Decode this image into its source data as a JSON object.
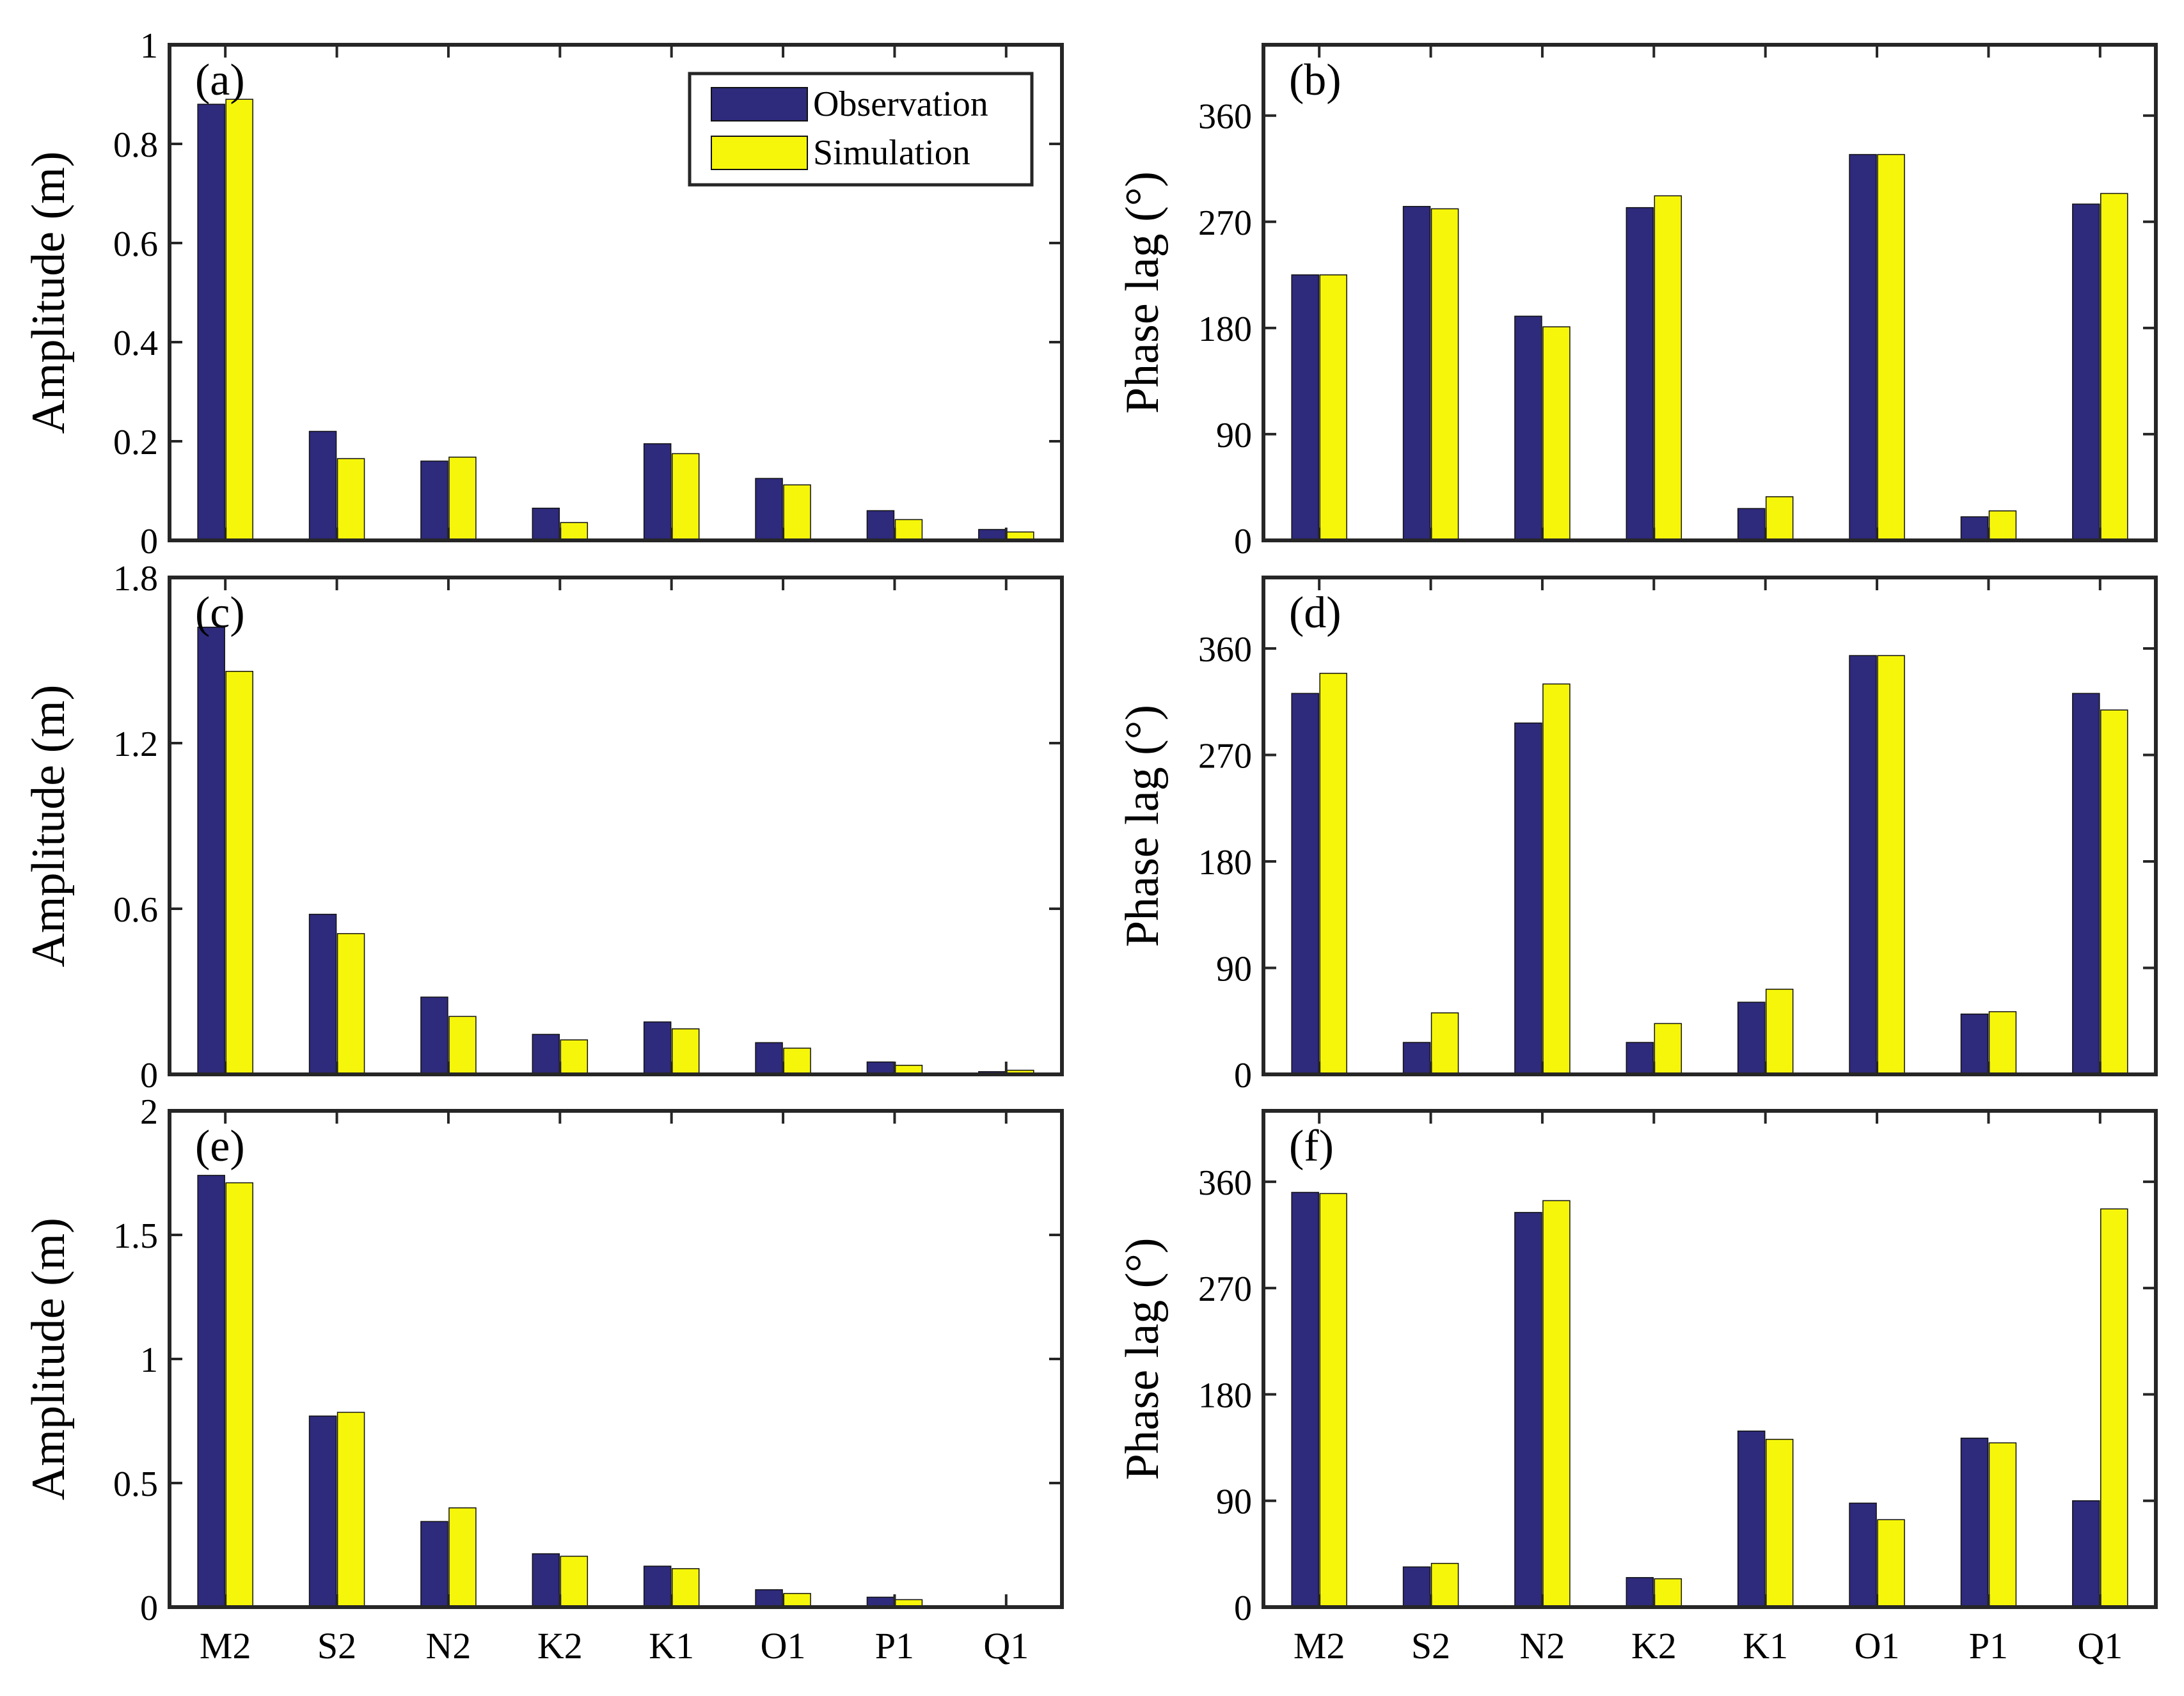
{
  "colors": {
    "observation": "#2e2a7c",
    "simulation": "#f6f60a",
    "axis": "#262626"
  },
  "legend": {
    "observation": "Observation",
    "simulation": "Simulation"
  },
  "chart_data": [
    {
      "id": "a",
      "panel_label": "(a)",
      "type": "bar",
      "ylabel": "Amplitude (m)",
      "xlabel": "",
      "categories": [
        "M2",
        "S2",
        "N2",
        "K2",
        "K1",
        "O1",
        "P1",
        "Q1"
      ],
      "ylim": [
        0,
        1
      ],
      "yticks": [
        0,
        0.2,
        0.4,
        0.6,
        0.8,
        1
      ],
      "ytick_labels": [
        "0",
        "0.2",
        "0.4",
        "0.6",
        "0.8",
        "1"
      ],
      "show_xticklabels": false,
      "show_legend": true,
      "legend_position": "top-right",
      "series": [
        {
          "name": "Observation",
          "values": [
            0.88,
            0.22,
            0.16,
            0.065,
            0.195,
            0.125,
            0.06,
            0.022
          ]
        },
        {
          "name": "Simulation",
          "values": [
            0.89,
            0.165,
            0.168,
            0.036,
            0.175,
            0.112,
            0.042,
            0.017
          ]
        }
      ]
    },
    {
      "id": "b",
      "panel_label": "(b)",
      "type": "bar",
      "ylabel": "Phase lag (°)",
      "xlabel": "",
      "categories": [
        "M2",
        "S2",
        "N2",
        "K2",
        "K1",
        "O1",
        "P1",
        "Q1"
      ],
      "ylim": [
        0,
        420
      ],
      "yticks": [
        0,
        90,
        180,
        270,
        360
      ],
      "ytick_labels": [
        "0",
        "90",
        "180",
        "270",
        "360"
      ],
      "show_xticklabels": false,
      "show_legend": false,
      "series": [
        {
          "name": "Observation",
          "values": [
            225,
            283,
            190,
            282,
            27,
            327,
            20,
            285
          ]
        },
        {
          "name": "Simulation",
          "values": [
            225,
            281,
            181,
            292,
            37,
            327,
            25,
            294
          ]
        }
      ]
    },
    {
      "id": "c",
      "panel_label": "(c)",
      "type": "bar",
      "ylabel": "Amplitude (m)",
      "xlabel": "",
      "categories": [
        "M2",
        "S2",
        "N2",
        "K2",
        "K1",
        "O1",
        "P1",
        "Q1"
      ],
      "ylim": [
        0,
        1.8
      ],
      "yticks": [
        0,
        0.6,
        1.2,
        1.8
      ],
      "ytick_labels": [
        "0",
        "0.6",
        "1.2",
        "1.8"
      ],
      "show_xticklabels": false,
      "show_legend": false,
      "series": [
        {
          "name": "Observation",
          "values": [
            1.62,
            0.58,
            0.28,
            0.145,
            0.19,
            0.115,
            0.045,
            0.01
          ]
        },
        {
          "name": "Simulation",
          "values": [
            1.46,
            0.51,
            0.21,
            0.125,
            0.165,
            0.095,
            0.033,
            0.015
          ]
        }
      ]
    },
    {
      "id": "d",
      "panel_label": "(d)",
      "type": "bar",
      "ylabel": "Phase lag (°)",
      "xlabel": "",
      "categories": [
        "M2",
        "S2",
        "N2",
        "K2",
        "K1",
        "O1",
        "P1",
        "Q1"
      ],
      "ylim": [
        0,
        420
      ],
      "yticks": [
        0,
        90,
        180,
        270,
        360
      ],
      "ytick_labels": [
        "0",
        "90",
        "180",
        "270",
        "360"
      ],
      "show_xticklabels": false,
      "show_legend": false,
      "series": [
        {
          "name": "Observation",
          "values": [
            322,
            27,
            297,
            27,
            61,
            354,
            51,
            322
          ]
        },
        {
          "name": "Simulation",
          "values": [
            339,
            52,
            330,
            43,
            72,
            354,
            53,
            308
          ]
        }
      ]
    },
    {
      "id": "e",
      "panel_label": "(e)",
      "type": "bar",
      "ylabel": "Amplitude (m)",
      "xlabel": "",
      "categories": [
        "M2",
        "S2",
        "N2",
        "K2",
        "K1",
        "O1",
        "P1",
        "Q1"
      ],
      "ylim": [
        0,
        2
      ],
      "yticks": [
        0,
        0.5,
        1,
        1.5,
        2
      ],
      "ytick_labels": [
        "0",
        "0.5",
        "1",
        "1.5",
        "2"
      ],
      "show_xticklabels": true,
      "show_legend": false,
      "series": [
        {
          "name": "Observation",
          "values": [
            1.74,
            0.77,
            0.345,
            0.215,
            0.165,
            0.07,
            0.04,
            0.005
          ]
        },
        {
          "name": "Simulation",
          "values": [
            1.71,
            0.785,
            0.4,
            0.205,
            0.155,
            0.055,
            0.03,
            0.004
          ]
        }
      ]
    },
    {
      "id": "f",
      "panel_label": "(f)",
      "type": "bar",
      "ylabel": "Phase lag (°)",
      "xlabel": "",
      "categories": [
        "M2",
        "S2",
        "N2",
        "K2",
        "K1",
        "O1",
        "P1",
        "Q1"
      ],
      "ylim": [
        0,
        420
      ],
      "yticks": [
        0,
        90,
        180,
        270,
        360
      ],
      "ytick_labels": [
        "0",
        "90",
        "180",
        "270",
        "360"
      ],
      "show_xticklabels": true,
      "show_legend": false,
      "series": [
        {
          "name": "Observation",
          "values": [
            351,
            34,
            334,
            25,
            149,
            88,
            143,
            90
          ]
        },
        {
          "name": "Simulation",
          "values": [
            350,
            37,
            344,
            24,
            142,
            74,
            139,
            337
          ]
        }
      ]
    }
  ]
}
